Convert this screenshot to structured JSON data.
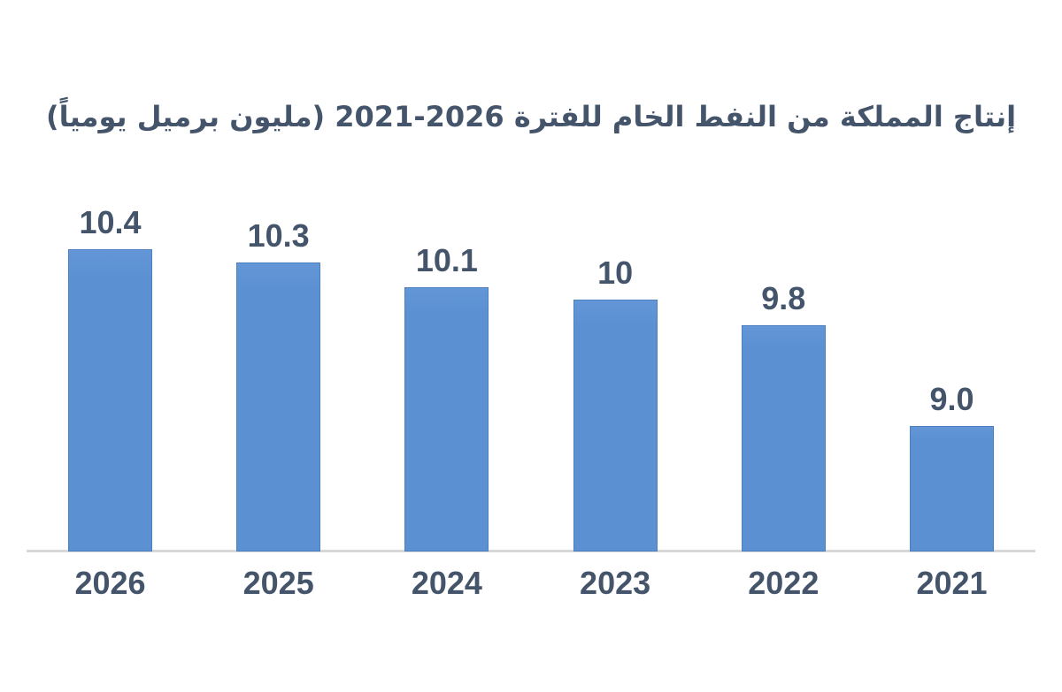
{
  "page": {
    "background_color": "#FFFFFF",
    "text_color": "#44546A",
    "bar_color": "#5B90D2",
    "axis_line_color": "#D8D8D8"
  },
  "chart_data": {
    "type": "bar",
    "title": "إنتاج المملكة من النفط الخام للفترة 2026-2021 (مليون برميل يومياً)",
    "title_translation": "Kingdom's crude oil production for the period 2021-2026 (million barrels per day)",
    "categories": [
      "2026",
      "2025",
      "2024",
      "2023",
      "2022",
      "2021"
    ],
    "values": [
      10.4,
      10.3,
      10.1,
      10,
      9.8,
      9.0
    ],
    "value_labels": [
      "10.4",
      "10.3",
      "10.1",
      "10",
      "9.8",
      "9.0"
    ],
    "xlabel": "",
    "ylabel": "",
    "ylim": [
      8,
      10.6
    ],
    "grid": false,
    "legend": "none",
    "direction": "rtl",
    "value_labels_position": "above-bars"
  }
}
